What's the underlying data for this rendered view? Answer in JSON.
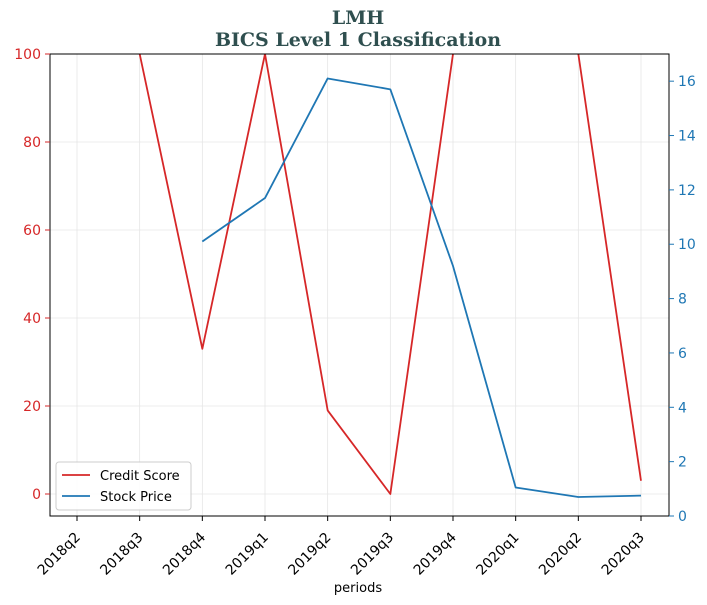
{
  "chart_data": {
    "type": "line",
    "title": "LMH",
    "subtitle": "BICS Level 1 Classification",
    "xlabel": "periods",
    "x": [
      "2018q2",
      "2018q3",
      "2018q4",
      "2019q1",
      "2019q2",
      "2019q3",
      "2019q4",
      "2020q1",
      "2020q2",
      "2020q3"
    ],
    "ylim_left": [
      -5,
      100
    ],
    "yticks_left": [
      "0",
      "20",
      "40",
      "60",
      "80",
      "100"
    ],
    "ylim_right": [
      0,
      17
    ],
    "yticks_right": [
      "0",
      "2",
      "4",
      "6",
      "8",
      "10",
      "12",
      "14",
      "16"
    ],
    "grid": true,
    "legend_position": "lower-left",
    "series": [
      {
        "name": "Credit Score",
        "axis": "left",
        "color": "#d62728",
        "values": [
          null,
          100,
          33,
          100,
          19,
          0,
          100,
          null,
          100,
          3
        ]
      },
      {
        "name": "Stock Price",
        "axis": "right",
        "color": "#1f77b4",
        "values": [
          null,
          null,
          10.1,
          11.7,
          16.1,
          15.7,
          9.2,
          1.05,
          0.7,
          0.75
        ]
      }
    ]
  }
}
